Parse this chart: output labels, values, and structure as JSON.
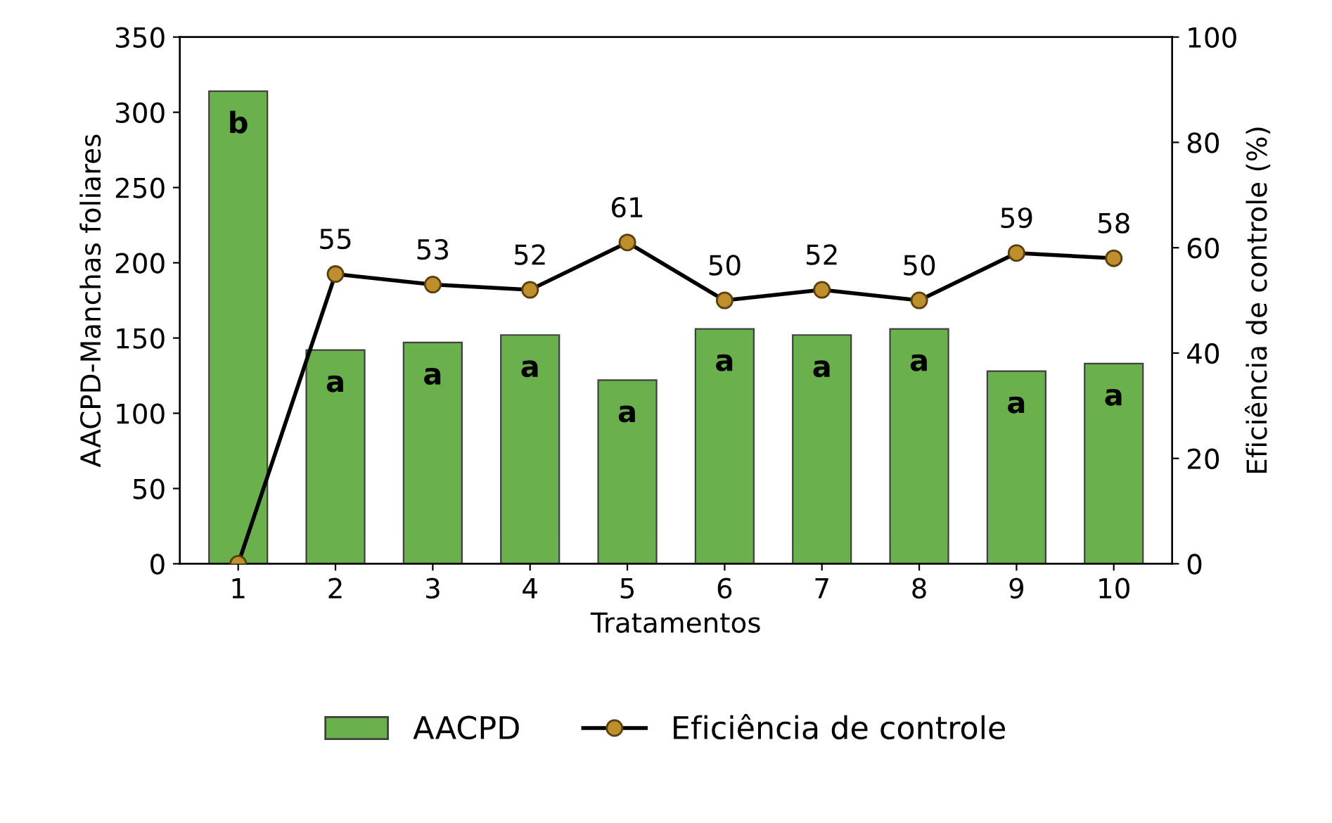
{
  "chart_data": {
    "type": "bar",
    "xlabel": "Tratamentos",
    "ylabel": "AACPD-Manchas foliares",
    "y2label": "Eficiência de controle (%)",
    "categories": [
      "1",
      "2",
      "3",
      "4",
      "5",
      "6",
      "7",
      "8",
      "9",
      "10"
    ],
    "series": [
      {
        "name": "AACPD",
        "color": "#6ab04c",
        "values": [
          314,
          142,
          147,
          152,
          122,
          156,
          152,
          156,
          128,
          133
        ]
      },
      {
        "name": "Eficiência de controle",
        "type": "line",
        "axis": "y2",
        "color": "#000000",
        "marker": "circle",
        "values": [
          0,
          55,
          53,
          52,
          61,
          50,
          52,
          50,
          59,
          58
        ],
        "value_labels": [
          null,
          "55",
          "53",
          "52",
          "61",
          "50",
          "52",
          "50",
          "59",
          "58"
        ]
      }
    ],
    "ylim": [
      0,
      350
    ],
    "yticks": [
      0,
      50,
      100,
      150,
      200,
      250,
      300,
      350
    ],
    "y2lim": [
      0,
      100
    ],
    "y2ticks": [
      0,
      20,
      40,
      60,
      80,
      100
    ],
    "annotations": [
      {
        "text": "b",
        "x": "1",
        "y": 314
      },
      {
        "text": "a",
        "x": "2",
        "y": 142
      },
      {
        "text": "a",
        "x": "3",
        "y": 147
      },
      {
        "text": "a",
        "x": "4",
        "y": 152
      },
      {
        "text": "a",
        "x": "5",
        "y": 122
      },
      {
        "text": "a",
        "x": "6",
        "y": 156
      },
      {
        "text": "a",
        "x": "7",
        "y": 152
      },
      {
        "text": "a",
        "x": "8",
        "y": 156
      },
      {
        "text": "a",
        "x": "9",
        "y": 128
      },
      {
        "text": "a",
        "x": "10",
        "y": 133
      }
    ],
    "grid": false,
    "legend": "bottom"
  }
}
